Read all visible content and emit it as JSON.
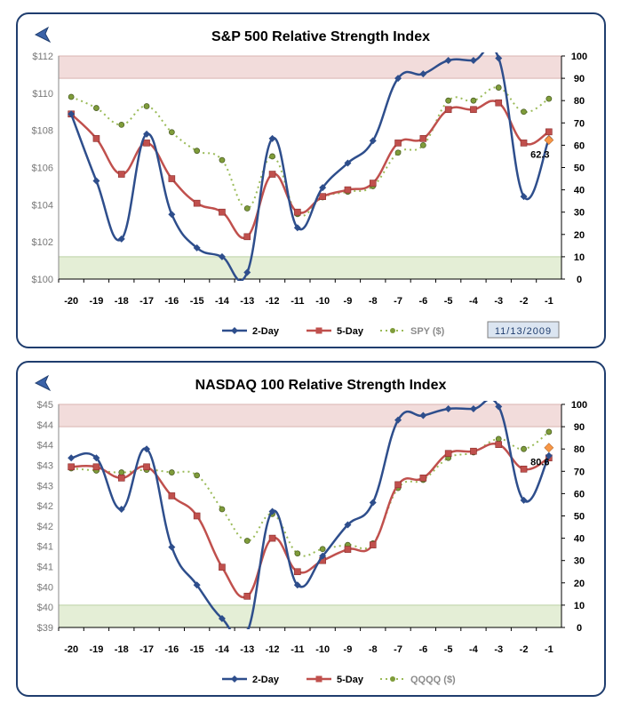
{
  "colors": {
    "two_day": "#2e4e8c",
    "five_day": "#c0504d",
    "price": "#7f9c3a",
    "overbought_band": "#f2dcdb",
    "oversold_band": "#e4eed6",
    "border": "#1f3d6e",
    "latest_marker": "#f79646"
  },
  "icons": {
    "back": "back-arrow-icon"
  },
  "chart_data": [
    {
      "type": "line",
      "title": "S&P 500 Relative Strength Index",
      "categories": [
        "-20",
        "-19",
        "-18",
        "-17",
        "-16",
        "-15",
        "-14",
        "-13",
        "-12",
        "-11",
        "-10",
        "-9",
        "-8",
        "-7",
        "-6",
        "-5",
        "-4",
        "-3",
        "-2",
        "-1"
      ],
      "left_axis": {
        "ylim": [
          100,
          112
        ],
        "ticks": [
          "$100",
          "$102",
          "$104",
          "$106",
          "$108",
          "$110",
          "$112"
        ]
      },
      "right_axis": {
        "ylim": [
          0,
          100
        ],
        "ticks": [
          "0",
          "10",
          "20",
          "30",
          "40",
          "50",
          "60",
          "70",
          "80",
          "90",
          "100"
        ]
      },
      "bands": {
        "overbought": [
          90,
          100
        ],
        "oversold": [
          0,
          10
        ]
      },
      "series": [
        {
          "name": "2-Day",
          "axis": "right",
          "values": [
            74,
            44,
            18,
            65,
            29,
            14,
            10,
            3,
            63,
            23,
            41,
            52,
            62,
            90,
            92,
            98,
            98,
            99,
            37,
            63
          ]
        },
        {
          "name": "5-Day",
          "axis": "right",
          "values": [
            74,
            63,
            47,
            61,
            45,
            34,
            30,
            19,
            47,
            30,
            37,
            40,
            43,
            61,
            63,
            76,
            76,
            79,
            61,
            66
          ]
        },
        {
          "name": "SPY ($)",
          "axis": "left",
          "values": [
            109.8,
            109.2,
            108.3,
            109.3,
            107.9,
            106.9,
            106.4,
            103.8,
            106.6,
            103.5,
            104.4,
            104.7,
            105.0,
            106.8,
            107.2,
            109.6,
            109.6,
            110.3,
            109.0,
            109.7
          ]
        }
      ],
      "latest_label": "62.3",
      "latest_value": 62.3,
      "date": "11/13/2009"
    },
    {
      "type": "line",
      "title": "NASDAQ 100 Relative Strength Index",
      "categories": [
        "-20",
        "-19",
        "-18",
        "-17",
        "-16",
        "-15",
        "-14",
        "-13",
        "-12",
        "-11",
        "-10",
        "-9",
        "-8",
        "-7",
        "-6",
        "-5",
        "-4",
        "-3",
        "-2",
        "-1"
      ],
      "left_axis": {
        "ylim": [
          39,
          45
        ],
        "ticks": [
          "$39",
          "$40",
          "$40",
          "$41",
          "$41",
          "$42",
          "$42",
          "$43",
          "$43",
          "$44",
          "$44",
          "$45"
        ]
      },
      "right_axis": {
        "ylim": [
          0,
          100
        ],
        "ticks": [
          "0",
          "10",
          "20",
          "30",
          "40",
          "50",
          "60",
          "70",
          "80",
          "90",
          "100"
        ]
      },
      "bands": {
        "overbought": [
          90,
          100
        ],
        "oversold": [
          0,
          10
        ]
      },
      "series": [
        {
          "name": "2-Day",
          "axis": "right",
          "values": [
            76,
            76,
            53,
            80,
            36,
            19,
            4,
            -2,
            52,
            19,
            32,
            46,
            56,
            93,
            95,
            98,
            98,
            99,
            57,
            77
          ]
        },
        {
          "name": "5-Day",
          "axis": "right",
          "values": [
            72,
            72,
            67,
            72,
            59,
            50,
            27,
            14,
            40,
            25,
            30,
            35,
            37,
            64,
            67,
            78,
            79,
            82,
            71,
            76
          ]
        },
        {
          "name": "QQQQ ($)",
          "axis": "left",
          "values": [
            43.28,
            43.22,
            43.17,
            43.24,
            43.17,
            43.09,
            42.18,
            41.33,
            42.05,
            40.99,
            41.11,
            41.22,
            41.26,
            42.75,
            42.97,
            43.56,
            43.71,
            44.07,
            43.8,
            44.26
          ]
        }
      ],
      "latest_label": "80.6",
      "latest_value": 80.6,
      "date": ""
    }
  ]
}
